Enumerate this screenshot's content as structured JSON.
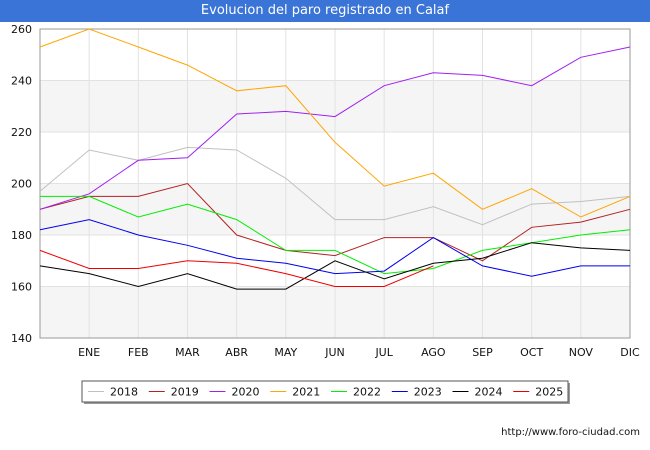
{
  "title": "Evolucion del paro registrado en Calaf",
  "footer": {
    "url": "http://www.foro-ciudad.com"
  },
  "chart_data": {
    "type": "line",
    "title": "Evolucion del paro registrado en Calaf",
    "xlabel": "",
    "ylabel": "",
    "categories": [
      "",
      "ENE",
      "FEB",
      "MAR",
      "ABR",
      "MAY",
      "JUN",
      "JUL",
      "AGO",
      "SEP",
      "OCT",
      "NOV",
      "DIC"
    ],
    "ylim": [
      140,
      260
    ],
    "yticks": [
      "140",
      "160",
      "180",
      "200",
      "220",
      "240",
      "260"
    ],
    "grid": true,
    "legend_position": "bottom",
    "series": [
      {
        "name": "2018",
        "color": "#c0c0c0",
        "values": [
          197,
          213,
          209,
          214,
          213,
          202,
          186,
          186,
          191,
          184,
          192,
          193,
          195
        ]
      },
      {
        "name": "2019",
        "color": "#b22222",
        "values": [
          190,
          195,
          195,
          200,
          180,
          174,
          172,
          179,
          179,
          170,
          183,
          185,
          190
        ]
      },
      {
        "name": "2020",
        "color": "#a020f0",
        "values": [
          190,
          196,
          209,
          210,
          227,
          228,
          226,
          238,
          243,
          242,
          238,
          249,
          253
        ]
      },
      {
        "name": "2021",
        "color": "#ffa500",
        "values": [
          253,
          260,
          253,
          246,
          236,
          238,
          216,
          199,
          204,
          190,
          198,
          187,
          195
        ]
      },
      {
        "name": "2022",
        "color": "#00ee00",
        "values": [
          195,
          195,
          187,
          192,
          186,
          174,
          174,
          165,
          167,
          174,
          177,
          180,
          182
        ]
      },
      {
        "name": "2023",
        "color": "#0000ee",
        "values": [
          182,
          186,
          180,
          176,
          171,
          169,
          165,
          166,
          179,
          168,
          164,
          168,
          168
        ]
      },
      {
        "name": "2024",
        "color": "#000000",
        "values": [
          168,
          165,
          160,
          165,
          159,
          159,
          170,
          163,
          169,
          171,
          177,
          175,
          174
        ]
      },
      {
        "name": "2025",
        "color": "#ee0000",
        "values": [
          174,
          167,
          167,
          170,
          169,
          165,
          160,
          160,
          168,
          null,
          null,
          null,
          null
        ]
      }
    ]
  }
}
